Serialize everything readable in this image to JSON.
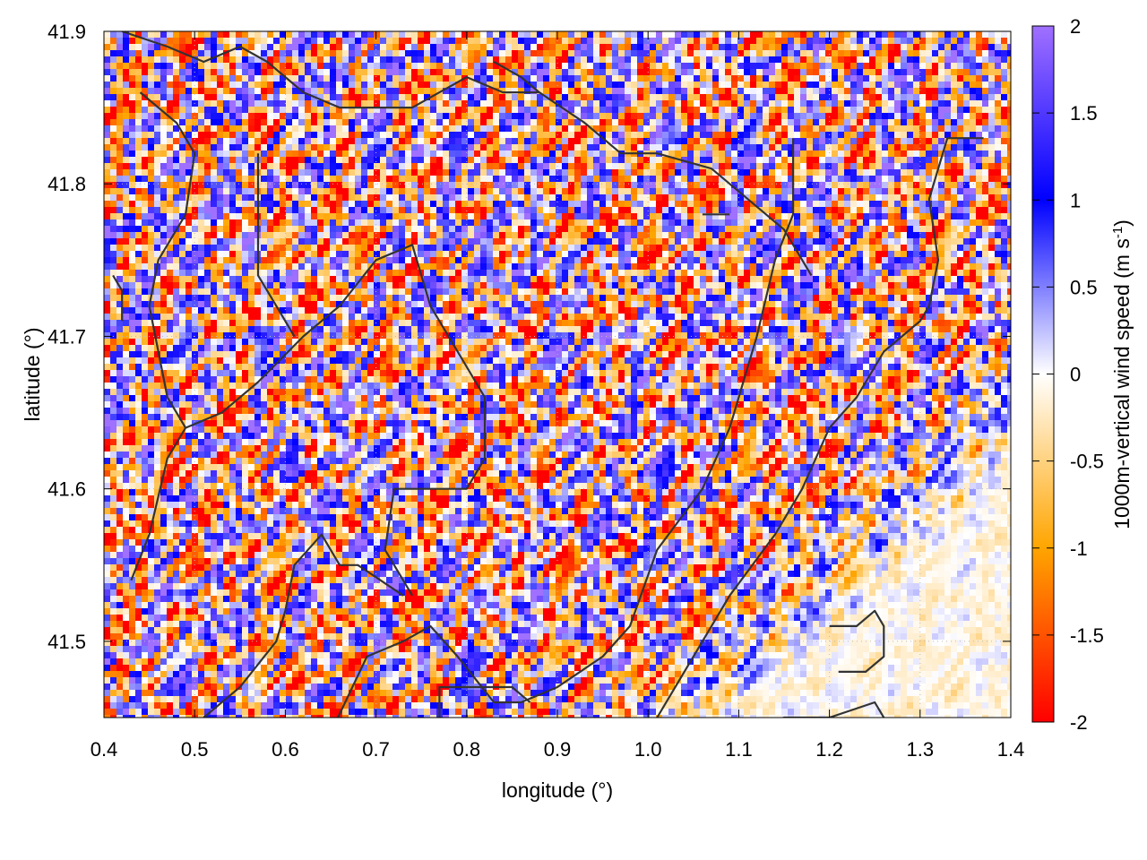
{
  "chart_data": {
    "type": "heatmap",
    "title": "",
    "xlabel": "longitude (°)",
    "ylabel": "latitude (°)",
    "xlim": [
      0.4,
      1.4
    ],
    "ylim": [
      41.45,
      41.9
    ],
    "x_ticks": [
      0.4,
      0.5,
      0.6,
      0.7,
      0.8,
      0.9,
      1.0,
      1.1,
      1.2,
      1.3,
      1.4
    ],
    "x_tick_labels": [
      "0.4",
      "0.5",
      "0.6",
      "0.7",
      "0.8",
      "0.9",
      "1.0",
      "1.1",
      "1.2",
      "1.3",
      "1.4"
    ],
    "y_ticks": [
      41.5,
      41.6,
      41.7,
      41.8,
      41.9
    ],
    "y_tick_labels": [
      "41.5",
      "41.6",
      "41.7",
      "41.8",
      "41.9"
    ],
    "grid": true,
    "colorbar": {
      "label_main": "1000m-vertical wind speed (m s",
      "label_sup": "-1",
      "label_close": ")",
      "range": [
        -2,
        2
      ],
      "ticks": [
        2,
        1.5,
        1,
        0.5,
        0,
        -0.5,
        -1,
        -1.5,
        -2
      ],
      "tick_labels": [
        "2",
        "1.5",
        "1",
        "0.5",
        "0",
        "-0.5",
        "-1",
        "-1.5",
        "-2"
      ],
      "colors": {
        "c_neg2": "#ff0000",
        "c_neg1": "#ffa500",
        "c_0": "#ffffff",
        "c_pos1": "#0000ff",
        "c_pos2": "#a070ff"
      }
    },
    "field_description": "Fine-scale alternating updraft (blue/purple) and downdraft (orange/red) cells over the western and northern domain; weak near-zero values in the south-east.",
    "contour_color": "#333333",
    "contours": [
      [
        [
          0.43,
          41.54
        ],
        [
          0.45,
          41.57
        ],
        [
          0.47,
          41.62
        ],
        [
          0.49,
          41.64
        ],
        [
          0.53,
          41.65
        ],
        [
          0.57,
          41.67
        ],
        [
          0.62,
          41.7
        ],
        [
          0.66,
          41.72
        ],
        [
          0.7,
          41.75
        ],
        [
          0.74,
          41.76
        ],
        [
          0.76,
          41.72
        ],
        [
          0.79,
          41.69
        ],
        [
          0.82,
          41.66
        ],
        [
          0.82,
          41.62
        ],
        [
          0.8,
          41.6
        ],
        [
          0.78,
          41.6
        ],
        [
          0.75,
          41.6
        ],
        [
          0.72,
          41.6
        ],
        [
          0.71,
          41.56
        ],
        [
          0.74,
          41.53
        ]
      ],
      [
        [
          0.51,
          41.45
        ],
        [
          0.55,
          41.47
        ],
        [
          0.59,
          41.5
        ],
        [
          0.6,
          41.52
        ],
        [
          0.61,
          41.55
        ],
        [
          0.64,
          41.57
        ],
        [
          0.66,
          41.55
        ],
        [
          0.68,
          41.55
        ],
        [
          0.73,
          41.53
        ]
      ],
      [
        [
          0.65,
          41.44
        ],
        [
          0.69,
          41.49
        ],
        [
          0.73,
          41.5
        ],
        [
          0.76,
          41.51
        ],
        [
          0.79,
          41.49
        ],
        [
          0.83,
          41.46
        ],
        [
          0.86,
          41.46
        ],
        [
          0.9,
          41.47
        ],
        [
          0.95,
          41.49
        ],
        [
          0.98,
          41.51
        ],
        [
          1.01,
          41.56
        ],
        [
          1.06,
          41.6
        ],
        [
          1.09,
          41.64
        ],
        [
          1.12,
          41.7
        ],
        [
          1.14,
          41.75
        ],
        [
          1.16,
          41.78
        ],
        [
          1.16,
          41.83
        ]
      ],
      [
        [
          0.77,
          41.44
        ],
        [
          0.77,
          41.47
        ],
        [
          0.82,
          41.47
        ],
        [
          0.85,
          41.47
        ],
        [
          0.87,
          41.46
        ]
      ],
      [
        [
          0.42,
          41.9
        ],
        [
          0.47,
          41.89
        ],
        [
          0.51,
          41.88
        ],
        [
          0.55,
          41.89
        ],
        [
          0.58,
          41.88
        ],
        [
          0.62,
          41.86
        ],
        [
          0.66,
          41.85
        ],
        [
          0.7,
          41.85
        ],
        [
          0.74,
          41.85
        ],
        [
          0.77,
          41.86
        ],
        [
          0.8,
          41.87
        ],
        [
          0.84,
          41.86
        ],
        [
          0.88,
          41.86
        ],
        [
          0.93,
          41.84
        ],
        [
          0.97,
          41.82
        ],
        [
          1.01,
          41.82
        ],
        [
          1.07,
          41.81
        ],
        [
          1.11,
          41.79
        ],
        [
          1.15,
          41.77
        ],
        [
          1.18,
          41.74
        ]
      ],
      [
        [
          0.44,
          41.86
        ],
        [
          0.48,
          41.84
        ],
        [
          0.5,
          41.82
        ],
        [
          0.49,
          41.78
        ],
        [
          0.46,
          41.75
        ],
        [
          0.45,
          41.72
        ],
        [
          0.46,
          41.69
        ],
        [
          0.47,
          41.66
        ],
        [
          0.49,
          41.64
        ]
      ],
      [
        [
          0.57,
          41.82
        ],
        [
          0.57,
          41.78
        ],
        [
          0.57,
          41.74
        ],
        [
          0.59,
          41.72
        ],
        [
          0.61,
          41.7
        ]
      ],
      [
        [
          0.83,
          41.88
        ],
        [
          0.86,
          41.87
        ],
        [
          0.88,
          41.86
        ]
      ],
      [
        [
          1.01,
          41.45
        ],
        [
          1.05,
          41.49
        ],
        [
          1.09,
          41.53
        ],
        [
          1.14,
          41.57
        ],
        [
          1.17,
          41.6
        ],
        [
          1.2,
          41.64
        ],
        [
          1.23,
          41.66
        ],
        [
          1.26,
          41.69
        ],
        [
          1.3,
          41.71
        ],
        [
          1.31,
          41.72
        ],
        [
          1.32,
          41.75
        ],
        [
          1.31,
          41.79
        ],
        [
          1.33,
          41.83
        ],
        [
          1.37,
          41.83
        ]
      ],
      [
        [
          1.1,
          41.44
        ],
        [
          1.15,
          41.45
        ],
        [
          1.2,
          41.45
        ],
        [
          1.25,
          41.46
        ],
        [
          1.27,
          41.44
        ]
      ],
      [
        [
          1.2,
          41.51
        ],
        [
          1.23,
          41.51
        ],
        [
          1.25,
          41.52
        ],
        [
          1.26,
          41.51
        ],
        [
          1.26,
          41.49
        ],
        [
          1.24,
          41.48
        ],
        [
          1.21,
          41.48
        ]
      ],
      [
        [
          0.41,
          41.74
        ],
        [
          0.42,
          41.73
        ],
        [
          0.42,
          41.71
        ]
      ],
      [
        [
          1.06,
          41.78
        ],
        [
          1.09,
          41.78
        ]
      ]
    ]
  }
}
